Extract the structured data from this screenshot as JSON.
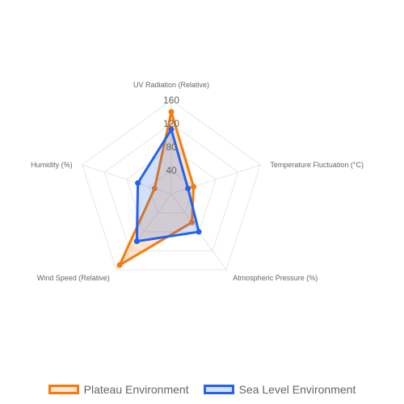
{
  "chart_data": {
    "type": "radar",
    "axes": [
      "UV Radiation (Relative)",
      "Temperature Fluctuation (°C)",
      "Atmospheric Pressure (%)",
      "Wind Speed (Relative)",
      "Humidity (%)"
    ],
    "r_range": [
      0,
      160
    ],
    "ticks": [
      "40",
      "80",
      "120",
      "160"
    ],
    "grid": true,
    "legend_position": "bottom",
    "series": [
      {
        "name": "Plateau Environment",
        "values": [
          140,
          40,
          60,
          150,
          30
        ],
        "color": "#f47c0e",
        "fill": "rgba(244,124,14,0.2)"
      },
      {
        "name": "Sea Level Environment",
        "values": [
          110,
          30,
          80,
          100,
          60
        ],
        "color": "#2563eb",
        "fill": "rgba(37,99,235,0.2)"
      }
    ]
  }
}
